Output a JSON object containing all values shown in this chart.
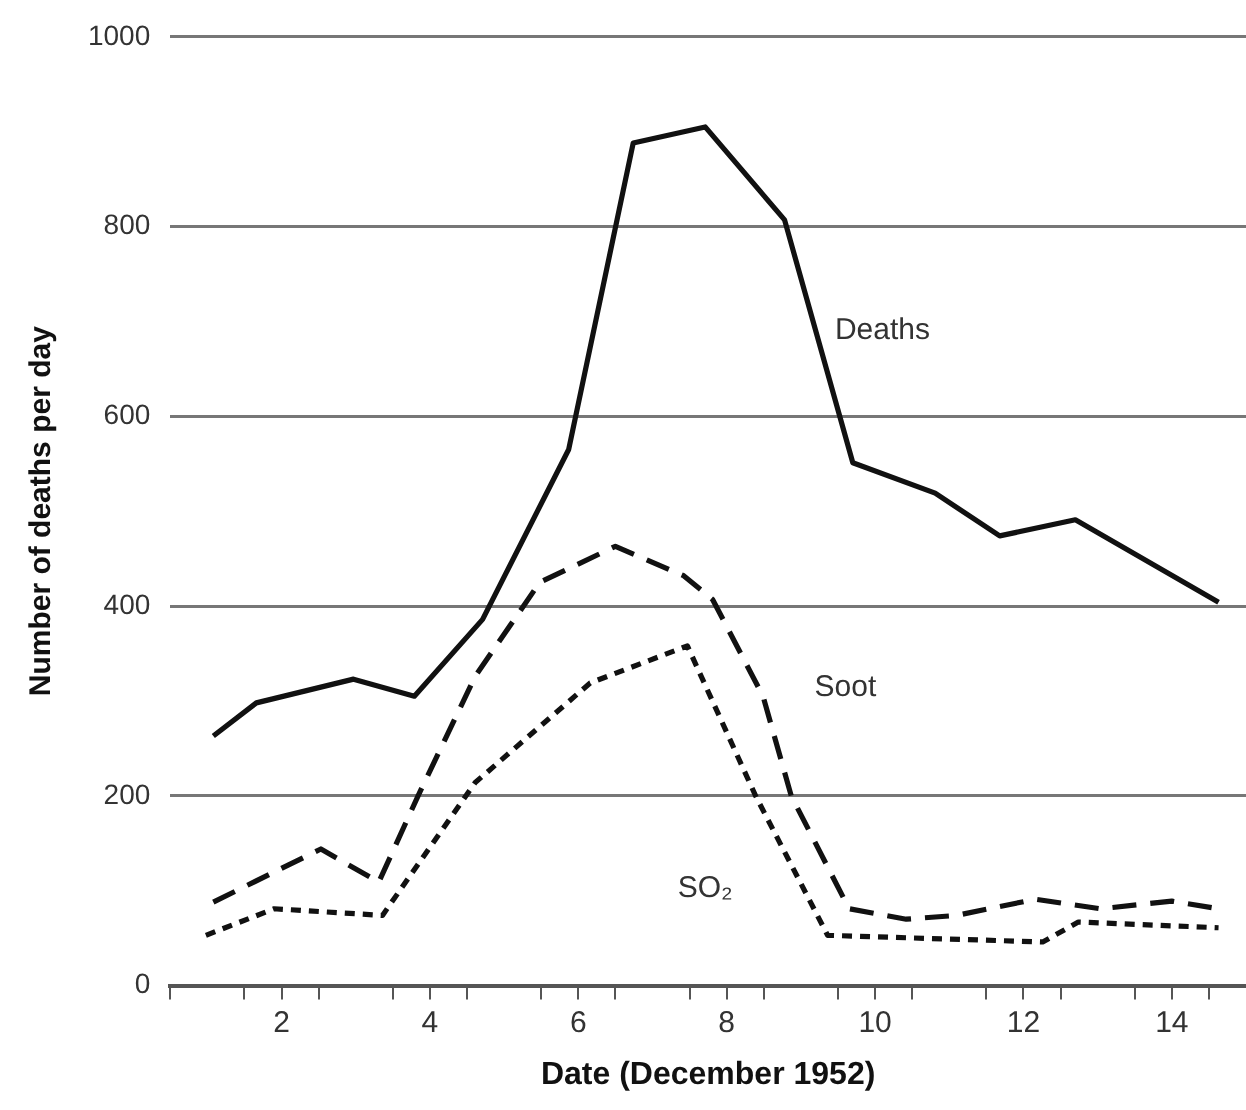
{
  "chart_data": {
    "type": "line",
    "xlabel": "Date (December 1952)",
    "ylabel": "Number of deaths per day",
    "xlim": [
      0.5,
      15
    ],
    "ylim": [
      0,
      1000
    ],
    "xticks": [
      {
        "value": 0.5,
        "label": null
      },
      {
        "value": 1.5,
        "label": null
      },
      2,
      {
        "value": 2.5,
        "label": null
      },
      {
        "value": 3.5,
        "label": null
      },
      4,
      {
        "value": 4.5,
        "label": null
      },
      {
        "value": 5.5,
        "label": null
      },
      6,
      {
        "value": 6.5,
        "label": null
      },
      {
        "value": 7.5,
        "label": null
      },
      8,
      {
        "value": 8.5,
        "label": null
      },
      {
        "value": 9.5,
        "label": null
      },
      10,
      {
        "value": 10.5,
        "label": null
      },
      {
        "value": 11.5,
        "label": null
      },
      12,
      {
        "value": 12.5,
        "label": null
      },
      {
        "value": 13.5,
        "label": null
      },
      14,
      {
        "value": 14.5,
        "label": null
      }
    ],
    "yticks": [
      0,
      200,
      400,
      600,
      800,
      1000
    ],
    "grid": "y",
    "legend": false,
    "marker": "none",
    "series": [
      {
        "name": "Deaths",
        "color": "#111111",
        "line_style": "solid",
        "x": [
          1.08,
          1.66,
          2.97,
          3.79,
          4.71,
          5.87,
          6.74,
          7.71,
          8.78,
          9.7,
          10.81,
          11.68,
          12.7,
          14.63
        ],
        "values": [
          263,
          298,
          323,
          305,
          386,
          565,
          888,
          905,
          807,
          551,
          519,
          474,
          491,
          404
        ]
      },
      {
        "name": "Soot",
        "color": "#111111",
        "line_style": "dashed",
        "x": [
          1.08,
          2.53,
          3.31,
          3.84,
          4.61,
          5.48,
          6.5,
          7.42,
          7.81,
          8.49,
          8.87,
          9.65,
          10.42,
          11.1,
          12.16,
          13.04,
          14.0,
          14.63
        ],
        "values": [
          88,
          144,
          109,
          200,
          326,
          425,
          463,
          432,
          407,
          305,
          200,
          81,
          70,
          74,
          91,
          81,
          89,
          81
        ]
      },
      {
        "name": "SO₂",
        "color": "#111111",
        "line_style": "dotted",
        "x": [
          0.98,
          1.9,
          3.36,
          4.61,
          6.16,
          7.47,
          8.39,
          9.36,
          12.26,
          12.74,
          14.63
        ],
        "values": [
          53,
          81,
          74,
          214,
          319,
          358,
          200,
          53,
          46,
          67,
          61
        ]
      }
    ]
  }
}
